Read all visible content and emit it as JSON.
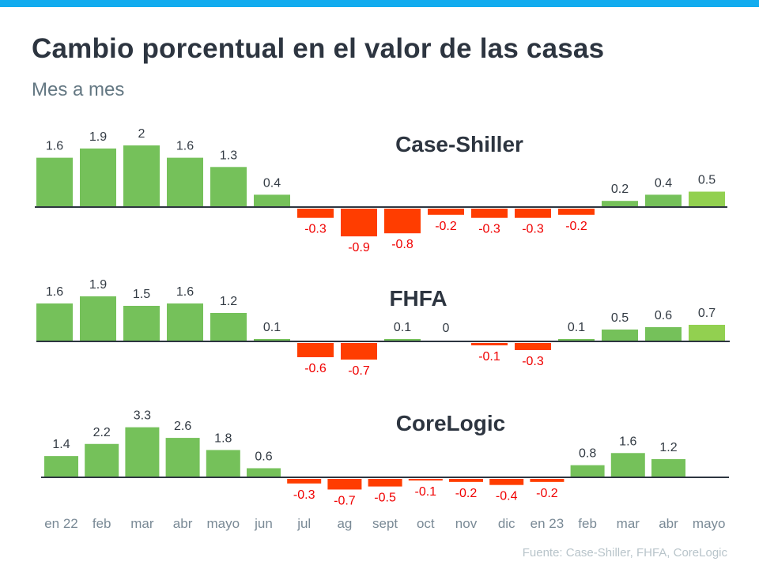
{
  "header": {
    "title": "Cambio porcentual en el valor de las casas",
    "subtitle": "Mes a mes"
  },
  "source": "Fuente:  Case-Shiller, FHFA, CoreLogic",
  "colors": {
    "top_bar": "#12ACEF",
    "positive": "#75C15A",
    "positive_latest": "#92D050",
    "negative": "#FF3D00",
    "negative_label": "#F00000",
    "axis": "#2D3540"
  },
  "chart_data": [
    {
      "type": "bar",
      "title": "Case-Shiller",
      "xlabel": "",
      "ylabel": "",
      "categories": [
        "en 22",
        "feb",
        "mar",
        "abr",
        "mayo",
        "jun",
        "jul",
        "ag",
        "sept",
        "oct",
        "nov",
        "dic",
        "en 23",
        "feb",
        "mar",
        "abr",
        "mayo"
      ],
      "values": [
        1.6,
        1.9,
        2,
        1.6,
        1.3,
        0.4,
        -0.3,
        -0.9,
        -0.8,
        -0.2,
        -0.3,
        -0.3,
        -0.2,
        0.2,
        0.4,
        0.5
      ],
      "labels": [
        "1.6",
        "1.9",
        "2",
        "1.6",
        "1.3",
        "0.4",
        "-0.3",
        "-0.9",
        "-0.8",
        "-0.2",
        "-0.3",
        "-0.3",
        "-0.2",
        "0.2",
        "0.4",
        "0.5"
      ],
      "highlight_last": true,
      "grid": false
    },
    {
      "type": "bar",
      "title": "FHFA",
      "xlabel": "",
      "ylabel": "",
      "categories": [
        "en 22",
        "feb",
        "mar",
        "abr",
        "mayo",
        "jun",
        "jul",
        "ag",
        "sept",
        "oct",
        "nov",
        "dic",
        "en 23",
        "feb",
        "mar",
        "abr",
        "mayo"
      ],
      "values": [
        1.6,
        1.9,
        1.5,
        1.6,
        1.2,
        0.1,
        -0.6,
        -0.7,
        0.1,
        0,
        -0.1,
        -0.3,
        0.1,
        0.5,
        0.6,
        0.7
      ],
      "labels": [
        "1.6",
        "1.9",
        "1.5",
        "1.6",
        "1.2",
        "0.1",
        "-0.6",
        "-0.7",
        "0.1",
        "0",
        "-0.1",
        "-0.3",
        "0.1",
        "0.5",
        "0.6",
        "0.7"
      ],
      "highlight_last": true,
      "grid": false
    },
    {
      "type": "bar",
      "title": "CoreLogic",
      "xlabel": "",
      "ylabel": "",
      "categories": [
        "en 22",
        "feb",
        "mar",
        "abr",
        "mayo",
        "jun",
        "jul",
        "ag",
        "sept",
        "oct",
        "nov",
        "dic",
        "en 23",
        "feb",
        "mar",
        "abr",
        "mayo"
      ],
      "values": [
        1.4,
        2.2,
        3.3,
        2.6,
        1.8,
        0.6,
        -0.3,
        -0.7,
        -0.5,
        -0.1,
        -0.2,
        -0.4,
        -0.2,
        0.8,
        1.6,
        1.2
      ],
      "labels": [
        "1.4",
        "2.2",
        "3.3",
        "2.6",
        "1.8",
        "0.6",
        "-0.3",
        "-0.7",
        "-0.5",
        "-0.1",
        "-0.2",
        "-0.4",
        "-0.2",
        "0.8",
        "1.6",
        "1.2"
      ],
      "highlight_last": false,
      "grid": false
    }
  ],
  "x_axis_labels": [
    "en 22",
    "feb",
    "mar",
    "abr",
    "mayo",
    "jun",
    "jul",
    "ag",
    "sept",
    "oct",
    "nov",
    "dic",
    "en 23",
    "feb",
    "mar",
    "abr",
    "mayo"
  ]
}
